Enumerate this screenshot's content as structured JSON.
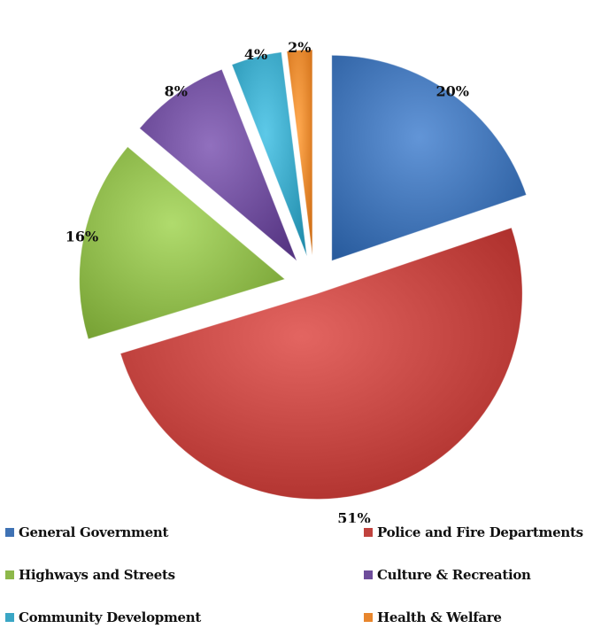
{
  "chart_data": {
    "type": "pie",
    "exploded": true,
    "legend_position": "bottom",
    "slices": [
      {
        "label": "General Government",
        "value": 20,
        "display": "20%",
        "color": "#3f72b4"
      },
      {
        "label": "Police and Fire Departments",
        "value": 51,
        "display": "51%",
        "color": "#c0423e"
      },
      {
        "label": "Highways and Streets",
        "value": 16,
        "display": "16%",
        "color": "#8db84a"
      },
      {
        "label": "Culture & Recreation",
        "value": 8,
        "display": "8%",
        "color": "#6e4d9b"
      },
      {
        "label": "Community Development",
        "value": 4,
        "display": "4%",
        "color": "#3aa6c5"
      },
      {
        "label": "Health & Welfare",
        "value": 2,
        "display": "2%",
        "color": "#e8862d"
      }
    ]
  }
}
